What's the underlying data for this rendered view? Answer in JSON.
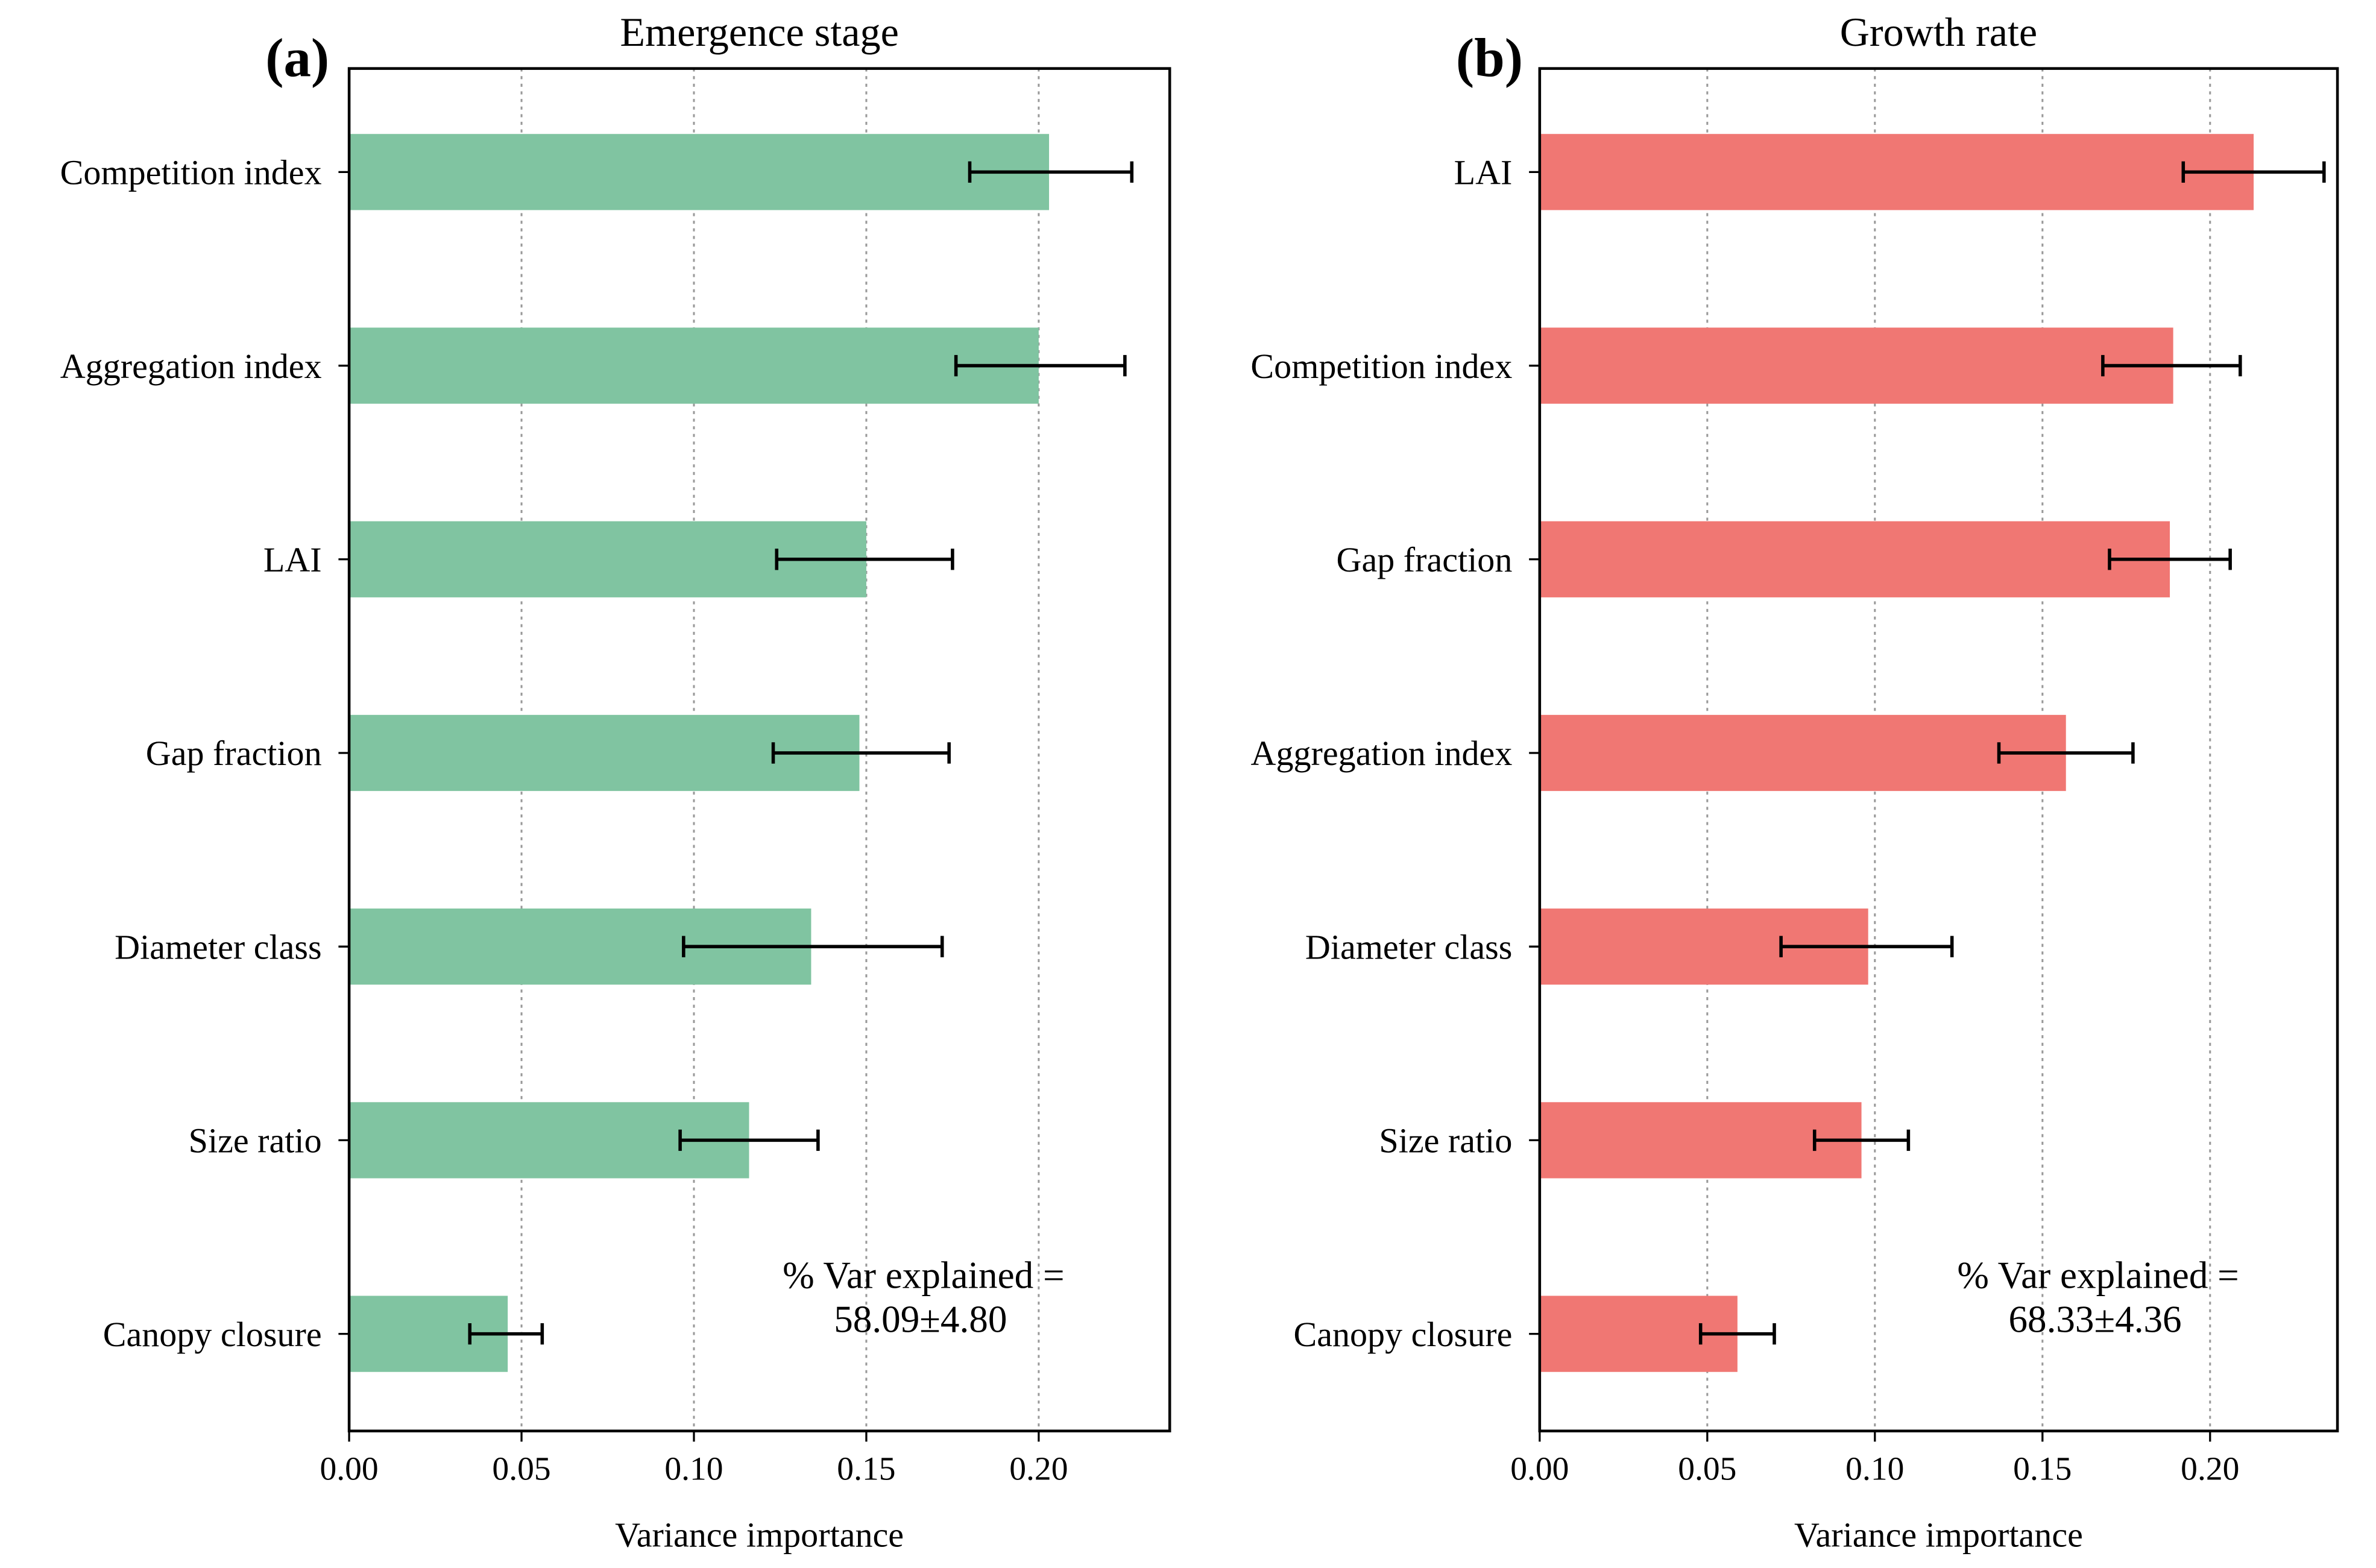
{
  "chart_data": [
    {
      "type": "bar",
      "orientation": "horizontal",
      "panel_label": "(a)",
      "title": "Emergence stage",
      "xlabel": "Variance importance",
      "ylabel": "",
      "xlim": [
        0,
        0.238
      ],
      "xticks": [
        "0.00",
        "0.05",
        "0.10",
        "0.15",
        "0.20"
      ],
      "xtick_values": [
        0,
        0.05,
        0.1,
        0.15,
        0.2
      ],
      "grid": "vertical dotted",
      "color": "#80c4a1",
      "categories": [
        "Competition index",
        "Aggregation index",
        "LAI",
        "Gap fraction",
        "Diameter class",
        "Size ratio",
        "Canopy closure"
      ],
      "values": [
        0.203,
        0.2,
        0.15,
        0.148,
        0.134,
        0.116,
        0.046
      ],
      "error_low": [
        0.18,
        0.176,
        0.124,
        0.123,
        0.097,
        0.096,
        0.035
      ],
      "error_high": [
        0.227,
        0.225,
        0.175,
        0.174,
        0.172,
        0.136,
        0.056
      ],
      "annotation": [
        "% Var explained =",
        "58.09±4.80"
      ]
    },
    {
      "type": "bar",
      "orientation": "horizontal",
      "panel_label": "(b)",
      "title": "Growth rate",
      "xlabel": "Variance importance",
      "ylabel": "",
      "xlim": [
        0,
        0.238
      ],
      "xticks": [
        "0.00",
        "0.05",
        "0.10",
        "0.15",
        "0.20"
      ],
      "xtick_values": [
        0,
        0.05,
        0.1,
        0.15,
        0.2
      ],
      "grid": "vertical dotted",
      "color": "#f07773",
      "categories": [
        "LAI",
        "Competition index",
        "Gap fraction",
        "Aggregation index",
        "Diameter class",
        "Size ratio",
        "Canopy closure"
      ],
      "values": [
        0.213,
        0.189,
        0.188,
        0.157,
        0.098,
        0.096,
        0.059
      ],
      "error_low": [
        0.192,
        0.168,
        0.17,
        0.137,
        0.072,
        0.082,
        0.048
      ],
      "error_high": [
        0.234,
        0.209,
        0.206,
        0.177,
        0.123,
        0.11,
        0.07
      ],
      "annotation": [
        "% Var explained =",
        "68.33±4.36"
      ]
    }
  ]
}
